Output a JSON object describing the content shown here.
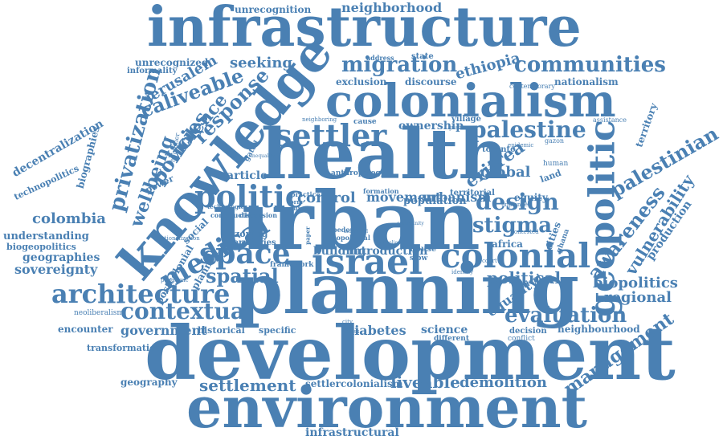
{
  "cloud": {
    "color": "#4a80b3",
    "words": [
      "infrastructure",
      "development",
      "environment",
      "planning",
      "health",
      "urban",
      "knowledge",
      "colonialism",
      "geopolitic",
      "israel",
      "colonial",
      "settler",
      "palestine",
      "architecture",
      "politic",
      "space",
      "migration",
      "communities",
      "medical",
      "contextual",
      "spatial",
      "awareness",
      "palestinian",
      "vulnerability",
      "management",
      "evaluation",
      "design",
      "stigma",
      "privatization",
      "wellbeing",
      "policies",
      "violence",
      "response",
      "caliveable",
      "jerusalem",
      "settlement",
      "liveable",
      "demolition",
      "diabetes",
      "science",
      "neighborhood",
      "unrecognition",
      "unrecognized",
      "informality",
      "seeking",
      "exclusion",
      "discourse",
      "ethiopia",
      "nationalism",
      "decentralization",
      "biographies",
      "technopolitics",
      "colombia",
      "understanding",
      "biogeopolitics",
      "geographies",
      "sovereignty",
      "neoliberalism",
      "encounter",
      "government",
      "transformation",
      "geography",
      "settlercolonialism",
      "infrastructural",
      "regional",
      "biopolitics",
      "neighbourhood",
      "production",
      "territory",
      "political",
      "equality",
      "global",
      "eritrea",
      "africa",
      "cities",
      "ghana",
      "land",
      "human",
      "gazon",
      "toronto",
      "equity",
      "public",
      "housing",
      "relationship",
      "liberalism",
      "national",
      "contemporary",
      "assistance",
      "justice",
      "decision",
      "conflict",
      "contested",
      "unplanned",
      "epidemic",
      "article",
      "control",
      "movement",
      "urbanism",
      "population",
      "introduction",
      "building",
      "social",
      "planned",
      "postcolonial",
      "historical",
      "specific",
      "different",
      "ownership",
      "village",
      "cause",
      "power",
      "healthier",
      "gated",
      "zoning",
      "territories",
      "pandemic",
      "construction",
      "discussion",
      "technologies",
      "nationalization",
      "framework",
      "practice",
      "form",
      "paper",
      "house",
      "slow",
      "city",
      "class",
      "state",
      "address",
      "neighboring",
      "formation",
      "anthropology",
      "territorial",
      "geopolitical",
      "bedouin",
      "individual",
      "symbolic",
      "dwelling",
      "identity",
      "court",
      "critical",
      "inequality",
      "community"
    ]
  }
}
